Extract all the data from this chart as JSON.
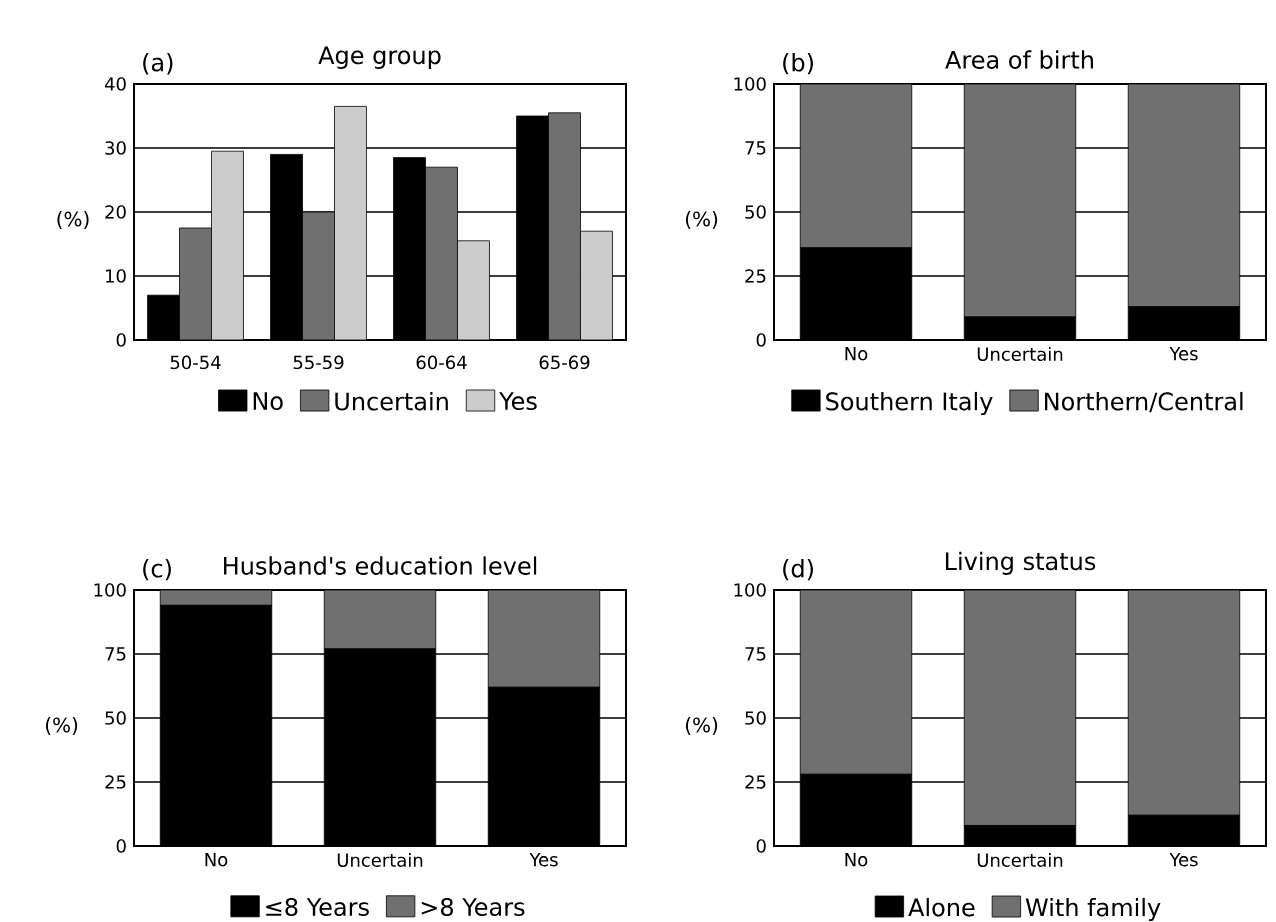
{
  "chart_data": [
    {
      "type": "bar",
      "title": "Age group",
      "annotations": [
        "(a)"
      ],
      "ylabel": "(%)",
      "categories": [
        "50-54",
        "55-59",
        "60-64",
        "65-69"
      ],
      "series": [
        {
          "name": "No",
          "color": "#000000",
          "values": [
            7,
            29,
            28.5,
            35
          ]
        },
        {
          "name": "Uncertain",
          "color": "#707070",
          "values": [
            17.5,
            20,
            27,
            35.5
          ]
        },
        {
          "name": "Yes",
          "color": "#cccccc",
          "values": [
            29.5,
            36.5,
            15.5,
            17
          ]
        }
      ],
      "ylim": [
        0,
        40
      ],
      "yticks": [
        0,
        10,
        20,
        30,
        40
      ],
      "grid": "y",
      "legend": "bottom"
    },
    {
      "type": "bar",
      "stacked": true,
      "title": "Area of birth",
      "annotations": [
        "(b)"
      ],
      "ylabel": "(%)",
      "categories": [
        "No",
        "Uncertain",
        "Yes"
      ],
      "series": [
        {
          "name": "Southern Italy",
          "color": "#000000",
          "values": [
            36,
            9,
            13
          ]
        },
        {
          "name": "Northern/Central",
          "color": "#707070",
          "values": [
            64,
            91,
            87
          ]
        }
      ],
      "ylim": [
        0,
        100
      ],
      "yticks": [
        0,
        25,
        50,
        75,
        100
      ],
      "grid": "y",
      "legend": "bottom"
    },
    {
      "type": "bar",
      "stacked": true,
      "title": "Husband's education level",
      "annotations": [
        "(c)"
      ],
      "ylabel": "(%)",
      "categories": [
        "No",
        "Uncertain",
        "Yes"
      ],
      "series": [
        {
          "name": "≤8 Years",
          "color": "#000000",
          "values": [
            94,
            77,
            62
          ]
        },
        {
          "name": ">8 Years",
          "color": "#707070",
          "values": [
            6,
            23,
            38
          ]
        }
      ],
      "ylim": [
        0,
        100
      ],
      "yticks": [
        0,
        25,
        50,
        75,
        100
      ],
      "grid": "y",
      "legend": "bottom"
    },
    {
      "type": "bar",
      "stacked": true,
      "title": "Living status",
      "annotations": [
        "(d)"
      ],
      "ylabel": "(%)",
      "categories": [
        "No",
        "Uncertain",
        "Yes"
      ],
      "series": [
        {
          "name": "Alone",
          "color": "#000000",
          "values": [
            28,
            8,
            12
          ]
        },
        {
          "name": "With family",
          "color": "#707070",
          "values": [
            72,
            92,
            88
          ]
        }
      ],
      "ylim": [
        0,
        100
      ],
      "yticks": [
        0,
        25,
        50,
        75,
        100
      ],
      "grid": "y",
      "legend": "bottom"
    }
  ]
}
